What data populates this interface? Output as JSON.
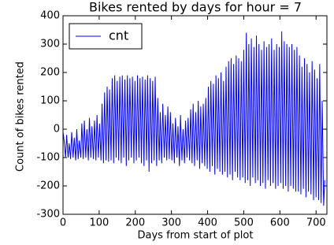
{
  "chart_data": {
    "type": "line",
    "title": "Bikes rented by days for hour = 7",
    "x_label": "Days from start of plot",
    "y_label": "Count of bikes rented",
    "xlim": [
      0,
      730
    ],
    "ylim": [
      -300,
      400
    ],
    "xticks": [
      0,
      100,
      200,
      300,
      400,
      500,
      600,
      700
    ],
    "yticks": [
      -300,
      -200,
      -100,
      0,
      100,
      200,
      300,
      400
    ],
    "grid": false,
    "legend": "upper left",
    "series": [
      {
        "name": "cnt",
        "color": "#0000ff",
        "x": [
          0,
          3,
          7,
          10,
          14,
          17,
          21,
          24,
          28,
          31,
          35,
          38,
          42,
          45,
          49,
          52,
          56,
          59,
          63,
          66,
          70,
          73,
          77,
          80,
          84,
          87,
          91,
          94,
          98,
          101,
          105,
          108,
          112,
          115,
          119,
          122,
          126,
          129,
          133,
          136,
          140,
          143,
          147,
          150,
          154,
          157,
          161,
          164,
          168,
          171,
          175,
          178,
          182,
          185,
          189,
          192,
          196,
          199,
          203,
          206,
          210,
          213,
          217,
          220,
          224,
          227,
          231,
          234,
          238,
          241,
          245,
          248,
          252,
          255,
          259,
          262,
          266,
          269,
          273,
          276,
          280,
          283,
          287,
          290,
          294,
          297,
          301,
          304,
          308,
          311,
          315,
          318,
          322,
          325,
          329,
          332,
          336,
          339,
          343,
          346,
          350,
          353,
          357,
          360,
          364,
          367,
          371,
          374,
          378,
          381,
          385,
          388,
          392,
          395,
          399,
          402,
          406,
          409,
          413,
          416,
          420,
          423,
          427,
          430,
          434,
          437,
          441,
          444,
          448,
          451,
          455,
          458,
          462,
          465,
          469,
          472,
          476,
          479,
          483,
          486,
          490,
          493,
          497,
          500,
          504,
          507,
          511,
          514,
          518,
          521,
          525,
          528,
          532,
          535,
          539,
          542,
          546,
          549,
          553,
          556,
          560,
          563,
          567,
          570,
          574,
          577,
          581,
          584,
          588,
          591,
          595,
          598,
          602,
          605,
          609,
          612,
          616,
          619,
          623,
          626,
          630,
          633,
          637,
          640,
          644,
          647,
          651,
          654,
          658,
          661,
          665,
          668,
          672,
          675,
          679,
          682,
          686,
          689,
          693,
          696,
          700,
          703,
          707,
          710,
          714,
          717,
          721,
          724
        ],
        "values": [
          -10,
          -40,
          -100,
          -20,
          -100,
          -50,
          -105,
          -10,
          -100,
          -30,
          -110,
          0,
          -105,
          -40,
          -100,
          20,
          -105,
          30,
          -100,
          0,
          -110,
          40,
          -100,
          10,
          -105,
          30,
          -110,
          50,
          -100,
          20,
          -110,
          90,
          -120,
          130,
          -110,
          150,
          -115,
          140,
          -110,
          180,
          -120,
          190,
          -100,
          170,
          -110,
          185,
          -120,
          190,
          -100,
          175,
          -130,
          190,
          -110,
          180,
          -100,
          185,
          -120,
          170,
          -110,
          190,
          -100,
          180,
          -120,
          185,
          -130,
          175,
          -110,
          190,
          -150,
          180,
          -120,
          170,
          -110,
          185,
          -130,
          110,
          -110,
          60,
          -120,
          90,
          -100,
          50,
          -110,
          80,
          -105,
          60,
          -110,
          20,
          -120,
          40,
          -100,
          10,
          -130,
          50,
          -110,
          0,
          -120,
          30,
          -100,
          40,
          -110,
          70,
          -120,
          90,
          -130,
          60,
          -110,
          100,
          -140,
          80,
          -120,
          90,
          -130,
          110,
          -140,
          150,
          -150,
          170,
          -130,
          160,
          -160,
          190,
          -140,
          180,
          -150,
          200,
          -160,
          170,
          -150,
          220,
          -170,
          240,
          -160,
          250,
          -180,
          230,
          -150,
          260,
          -170,
          250,
          -180,
          240,
          -170,
          280,
          -190,
          340,
          -180,
          300,
          -200,
          320,
          -170,
          290,
          -190,
          330,
          -180,
          300,
          -200,
          280,
          -190,
          310,
          -210,
          290,
          -180,
          300,
          -200,
          320,
          -190,
          280,
          -210,
          300,
          -200,
          290,
          -190,
          345,
          -210,
          310,
          -200,
          300,
          -220,
          290,
          -200,
          300,
          -210,
          280,
          -220,
          290,
          -220,
          260,
          -230,
          220,
          -210,
          250,
          -240,
          230,
          -220,
          200,
          -230,
          240,
          -250,
          210,
          -240,
          180,
          -250,
          230,
          -260,
          100,
          -270,
          -180
        ]
      }
    ]
  }
}
